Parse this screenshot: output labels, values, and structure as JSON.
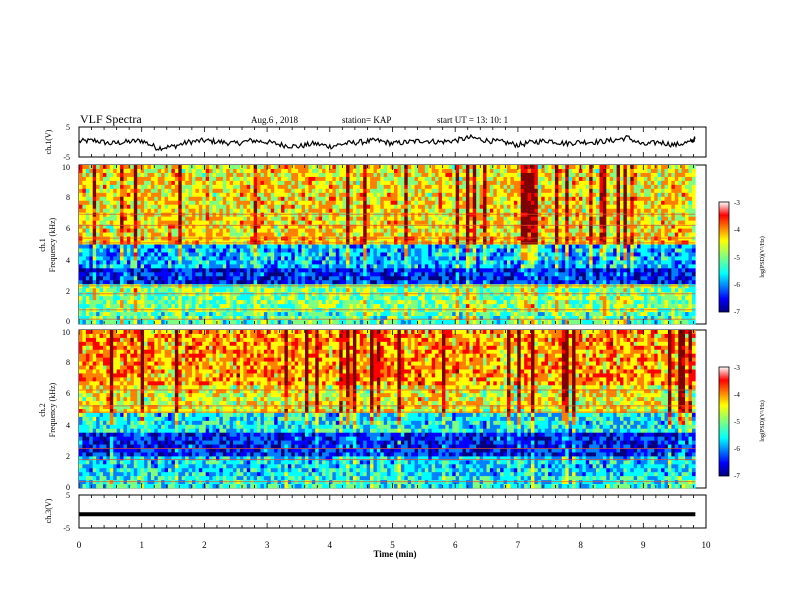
{
  "header": {
    "title": "VLF Spectra",
    "date": "Aug.6  , 2018",
    "station": "station= KAP",
    "start": "start  UT  =    13: 10: 1"
  },
  "chart_data": [
    {
      "type": "line",
      "panel": "ch1-waveform",
      "ylabel": "ch.1(V)",
      "ylim": [
        -5,
        5
      ],
      "yticks": [
        "5",
        "-5"
      ],
      "xlim": [
        0,
        10
      ],
      "x": [
        0,
        0.25,
        0.5,
        0.75,
        1,
        1.25,
        1.5,
        1.75,
        2,
        2.25,
        2.5,
        2.75,
        3,
        3.25,
        3.5,
        3.75,
        4,
        4.25,
        4.5,
        4.75,
        5,
        5.25,
        5.5,
        5.75,
        6,
        6.25,
        6.5,
        6.75,
        7,
        7.25,
        7.5,
        7.75,
        8,
        8.25,
        8.5,
        8.75,
        9,
        9.25,
        9.5,
        9.75,
        9.83
      ],
      "y": [
        0.2,
        0.5,
        -0.5,
        0,
        0.5,
        -2,
        -1.5,
        0,
        0.5,
        0,
        -0.5,
        0.5,
        0,
        -1,
        -1.5,
        -0.5,
        -1.5,
        -0.5,
        0,
        0.5,
        -0.5,
        0,
        0.5,
        0,
        0.5,
        1.5,
        0.5,
        0,
        -1,
        0,
        0.5,
        -0.5,
        0,
        0,
        0.5,
        1.5,
        -1,
        0,
        -1,
        0,
        1.2
      ]
    },
    {
      "type": "heatmap",
      "panel": "ch1-spectrogram",
      "ylabel_line1": "ch.1",
      "ylabel_line2": "Frequency  (kHz)",
      "ylim": [
        0,
        10
      ],
      "yticks": [
        "0",
        "2",
        "4",
        "6",
        "8",
        "10"
      ],
      "xlim": [
        0,
        9.83
      ],
      "colorbar": {
        "label": "log(PSD)(V²/Hz)",
        "range": [
          -7,
          -3
        ],
        "ticks": [
          "-3",
          "-4",
          "-5",
          "-6",
          "-7"
        ]
      },
      "band_profile": [
        {
          "freq_khz": [
            0,
            0.8
          ],
          "mean": -5.2
        },
        {
          "freq_khz": [
            0.8,
            2.5
          ],
          "mean": -5.0
        },
        {
          "freq_khz": [
            2.5,
            3.4
          ],
          "mean": -6.3
        },
        {
          "freq_khz": [
            3.4,
            5.0
          ],
          "mean": -5.7
        },
        {
          "freq_khz": [
            5.0,
            5.6
          ],
          "mean": -4.3
        },
        {
          "freq_khz": [
            5.6,
            10
          ],
          "mean": -4.5
        }
      ],
      "lines_khz": [
        0.3,
        0.9,
        1.9,
        2.4,
        5.1,
        5.4,
        6.2,
        6.9
      ]
    },
    {
      "type": "heatmap",
      "panel": "ch2-spectrogram",
      "ylabel_line1": "ch.2",
      "ylabel_line2": "Frequency  (kHz)",
      "ylim": [
        0,
        10
      ],
      "yticks": [
        "0",
        "2",
        "4",
        "6",
        "8",
        "10"
      ],
      "xlim": [
        0,
        9.83
      ],
      "colorbar": {
        "label": "log(PSD)(V²/Hz)",
        "range": [
          -7,
          -3
        ],
        "ticks": [
          "-3",
          "-4",
          "-5",
          "-6",
          "-7"
        ]
      },
      "band_profile": [
        {
          "freq_khz": [
            0,
            0.8
          ],
          "mean": -5.4
        },
        {
          "freq_khz": [
            0.8,
            2.0
          ],
          "mean": -5.6
        },
        {
          "freq_khz": [
            2.0,
            3.6
          ],
          "mean": -6.3
        },
        {
          "freq_khz": [
            3.6,
            4.8
          ],
          "mean": -5.5
        },
        {
          "freq_khz": [
            4.8,
            6.4
          ],
          "mean": -4.6
        },
        {
          "freq_khz": [
            6.4,
            10
          ],
          "mean": -4.2
        }
      ],
      "lines_khz": [
        0.4,
        1.8,
        2.5,
        4.8,
        5.2,
        6.2
      ]
    },
    {
      "type": "line",
      "panel": "ch3-waveform",
      "ylabel": "ch.3(V)",
      "ylim": [
        -5,
        5
      ],
      "yticks": [
        "5",
        "-5"
      ],
      "xlim": [
        0,
        10
      ],
      "x": [
        0,
        9.83
      ],
      "y": [
        -1,
        -1
      ]
    }
  ],
  "xaxis": {
    "label": "Time  (min)",
    "ticks": [
      "0",
      "1",
      "2",
      "3",
      "4",
      "5",
      "6",
      "7",
      "8",
      "9",
      "10"
    ]
  },
  "colors": {
    "jet": [
      "#00007f",
      "#0000ff",
      "#007fff",
      "#00ffff",
      "#7fff7f",
      "#ffff00",
      "#ff7f00",
      "#ff0000",
      "#7f0000"
    ]
  }
}
